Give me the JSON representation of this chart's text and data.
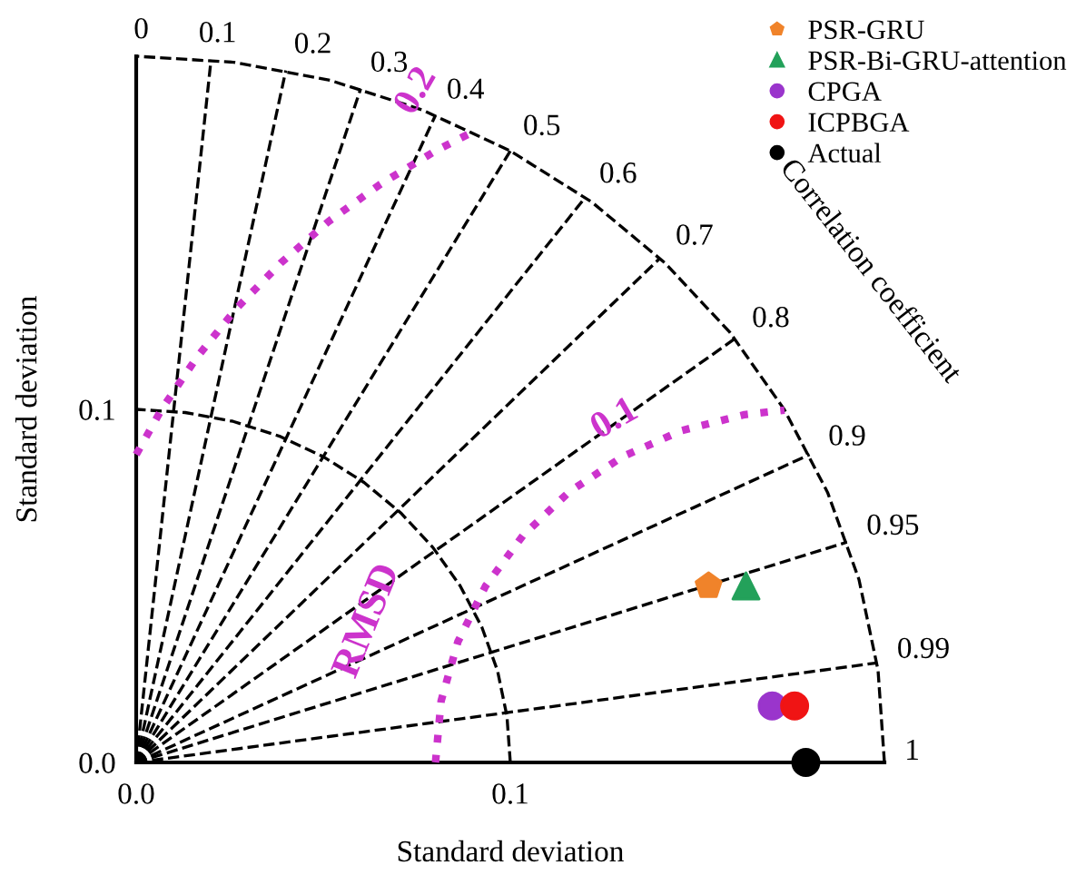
{
  "chart_data": {
    "type": "scatter",
    "xlabel": "Standard deviation",
    "ylabel": "Standard deviation",
    "xlim": [
      0,
      0.2
    ],
    "ylim": [
      0,
      0.2
    ],
    "xticks": [
      {
        "value": 0,
        "label": "0.0"
      },
      {
        "value": 0.1,
        "label": "0.1"
      }
    ],
    "yticks": [
      {
        "value": 0,
        "label": "0.0"
      },
      {
        "value": 0.1,
        "label": "0.1"
      }
    ],
    "legend": "top right",
    "series": [
      {
        "name": "PSR-GRU",
        "color": "#f0832a",
        "marker": "star",
        "x": [
          0.153
        ],
        "values": [
          0.05
        ]
      },
      {
        "name": "PSR-Bi-GRU-attention",
        "color": "#23a15a",
        "marker": "triangle",
        "x": [
          0.163
        ],
        "values": [
          0.05
        ]
      },
      {
        "name": "CPGA",
        "color": "#9a35cc",
        "marker": "circle",
        "x": [
          0.17
        ],
        "values": [
          0.016
        ]
      },
      {
        "name": "ICPBGA",
        "color": "#f01414",
        "marker": "circle",
        "x": [
          0.176
        ],
        "values": [
          0.016
        ]
      },
      {
        "name": "Actual",
        "color": "#000000",
        "marker": "circle",
        "x": [
          0.179
        ],
        "values": [
          0
        ]
      },
      {
        "type": "line",
        "color": "#cc33cc",
        "line_style": "dotted",
        "marker": "none",
        "x": [
          0.08,
          0.0815,
          0.086,
          0.0934,
          0.1034,
          0.1157,
          0.13,
          0.1458,
          0.1626,
          0.1733
        ],
        "values": [
          0,
          0.0174,
          0.0342,
          0.05,
          0.0643,
          0.0766,
          0.0866,
          0.094,
          0.0985,
          0.0998
        ]
      },
      {
        "type": "line",
        "color": "#cc33cc",
        "line_style": "dotted",
        "marker": "none",
        "x": [
          0,
          0.0068,
          0.0162,
          0.0268,
          0.0386,
          0.0514,
          0.0653,
          0.08,
          0.09
        ],
        "values": [
          0.0872,
          0.1,
          0.1147,
          0.1286,
          0.1414,
          0.1532,
          0.1638,
          0.1732,
          0.1786
        ]
      },
      {
        "type": "line",
        "color": "#000000",
        "line_style": "dashed",
        "marker": "none",
        "x": [
          0.1,
          0.0991,
          0.0966,
          0.0924,
          0.0866,
          0.0793,
          0.0707,
          0.0609,
          0.05,
          0.0383,
          0.0259,
          0.0131,
          0
        ],
        "values": [
          0,
          0.0131,
          0.0259,
          0.0383,
          0.05,
          0.0609,
          0.0707,
          0.0793,
          0.0866,
          0.0924,
          0.0966,
          0.0991,
          0.1
        ]
      },
      {
        "type": "line",
        "color": "#000000",
        "line_style": "dashed",
        "marker": "none",
        "x": [
          0.2,
          0.1983,
          0.1932,
          0.1848,
          0.1732,
          0.1587,
          0.1414,
          0.1218,
          0.1,
          0.0765,
          0.0518,
          0.0261,
          0
        ],
        "values": [
          0,
          0.0261,
          0.0518,
          0.0765,
          0.1,
          0.1218,
          0.1414,
          0.1587,
          0.1732,
          0.1848,
          0.1932,
          0.1983,
          0.2
        ]
      },
      {
        "type": "line",
        "color": "#000000",
        "line_style": "dashed",
        "marker": "none",
        "x": [
          0,
          0.02
        ],
        "values": [
          0,
          0.199
        ]
      },
      {
        "type": "line",
        "color": "#000000",
        "line_style": "dashed",
        "marker": "none",
        "x": [
          0,
          0.04
        ],
        "values": [
          0,
          0.196
        ]
      },
      {
        "type": "line",
        "color": "#000000",
        "line_style": "dashed",
        "marker": "none",
        "x": [
          0,
          0.06
        ],
        "values": [
          0,
          0.1908
        ]
      },
      {
        "type": "line",
        "color": "#000000",
        "line_style": "dashed",
        "marker": "none",
        "x": [
          0,
          0.08
        ],
        "values": [
          0,
          0.1833
        ]
      },
      {
        "type": "line",
        "color": "#000000",
        "line_style": "dashed",
        "marker": "none",
        "x": [
          0,
          0.1
        ],
        "values": [
          0,
          0.1732
        ]
      },
      {
        "type": "line",
        "color": "#000000",
        "line_style": "dashed",
        "marker": "none",
        "x": [
          0,
          0.12
        ],
        "values": [
          0,
          0.16
        ]
      },
      {
        "type": "line",
        "color": "#000000",
        "line_style": "dashed",
        "marker": "none",
        "x": [
          0,
          0.14
        ],
        "values": [
          0,
          0.1428
        ]
      },
      {
        "type": "line",
        "color": "#000000",
        "line_style": "dashed",
        "marker": "none",
        "x": [
          0,
          0.16
        ],
        "values": [
          0,
          0.12
        ]
      },
      {
        "type": "line",
        "color": "#000000",
        "line_style": "dashed",
        "marker": "none",
        "x": [
          0,
          0.18
        ],
        "values": [
          0,
          0.0872
        ]
      },
      {
        "type": "line",
        "color": "#000000",
        "line_style": "dashed",
        "marker": "none",
        "x": [
          0,
          0.19
        ],
        "values": [
          0,
          0.0624
        ]
      },
      {
        "type": "line",
        "color": "#000000",
        "line_style": "dashed",
        "marker": "none",
        "x": [
          0,
          0.198
        ],
        "values": [
          0,
          0.0282
        ]
      }
    ],
    "annotations": [
      "0",
      "0.1",
      "0.2",
      "0.3",
      "0.4",
      "0.5",
      "0.6",
      "0.7",
      "0.8",
      "0.9",
      "0.95",
      "0.99",
      "1",
      "Correlation coefficient",
      "0.1",
      "0.2",
      "RMSD"
    ]
  }
}
